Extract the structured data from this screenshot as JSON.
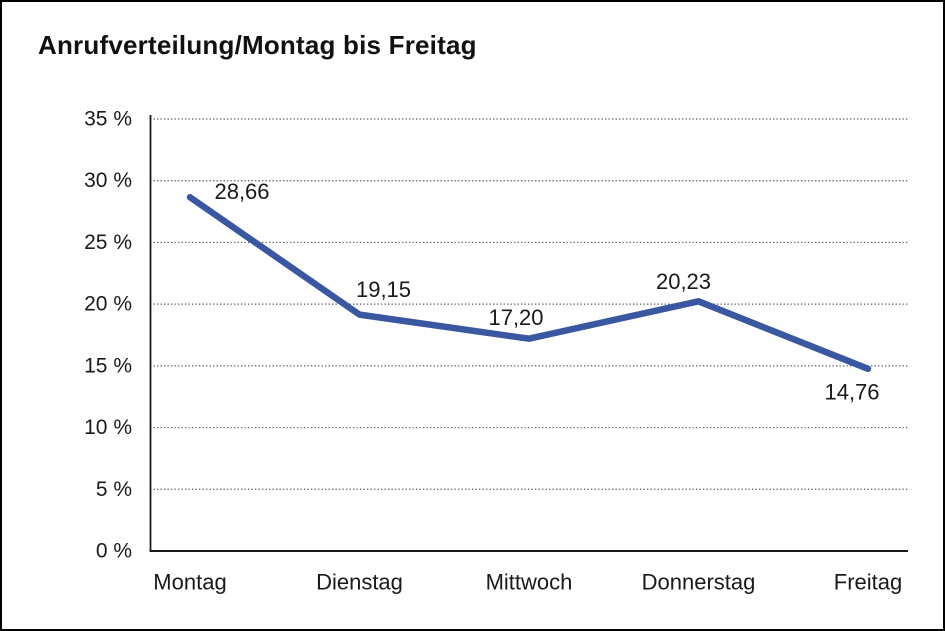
{
  "window": {
    "background": "#ffffff",
    "border_color": "#000000"
  },
  "chart_data": {
    "type": "line",
    "title": "Anrufverteilung/Montag bis Freitag",
    "categories": [
      "Montag",
      "Dienstag",
      "Mittwoch",
      "Donnerstag",
      "Freitag"
    ],
    "values": [
      28.66,
      19.15,
      17.2,
      20.23,
      14.76
    ],
    "data_labels": [
      "28,66",
      "19,15",
      "17,20",
      "20,23",
      "14,76"
    ],
    "y_ticks": [
      0,
      5,
      10,
      15,
      20,
      25,
      30,
      35
    ],
    "y_tick_labels": [
      "0 %",
      "5 %",
      "10 %",
      "15 %",
      "20 %",
      "25 %",
      "30 %",
      "35 %"
    ],
    "ylim": [
      0,
      35
    ],
    "xlabel": "",
    "ylabel": "",
    "grid": "horizontal-dotted",
    "legend": "none",
    "line_color": "#3a57a2",
    "axis_color": "#1a1a1a",
    "gridline_color": "#555555",
    "label_color": "#1a1a1a"
  }
}
